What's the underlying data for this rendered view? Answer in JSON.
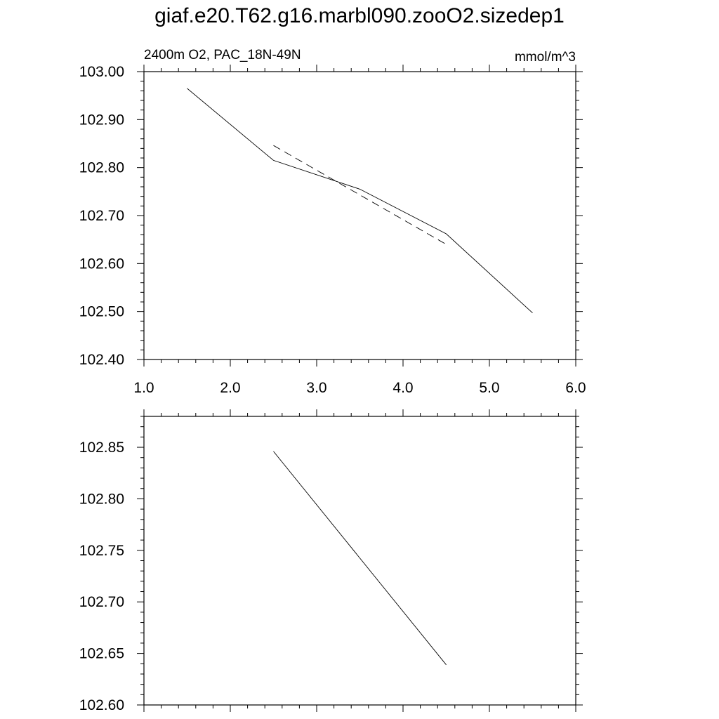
{
  "title": "giaf.e20.T62.g16.marbl090.zooO2.sizedep1",
  "chart_data": [
    {
      "type": "line",
      "left_label": "2400m O2, PAC_18N-49N",
      "right_label": "mmol/m^3",
      "xlim": [
        1.0,
        6.0
      ],
      "ylim": [
        102.4,
        103.0
      ],
      "x_ticks": [
        "1.0",
        "2.0",
        "3.0",
        "4.0",
        "5.0",
        "6.0"
      ],
      "y_ticks": [
        "102.40",
        "102.50",
        "102.60",
        "102.70",
        "102.80",
        "102.90",
        "103.00"
      ],
      "series": [
        {
          "style": "solid",
          "x": [
            1.5,
            2.5,
            3.5,
            4.5,
            5.5
          ],
          "y": [
            102.965,
            102.815,
            102.755,
            102.662,
            102.497
          ]
        },
        {
          "style": "dashed",
          "x": [
            2.5,
            4.5
          ],
          "y": [
            102.846,
            102.64
          ]
        }
      ]
    },
    {
      "type": "line",
      "xlim": [
        1.0,
        6.0
      ],
      "ylim": [
        102.6,
        102.88
      ],
      "y_ticks": [
        "102.60",
        "102.65",
        "102.70",
        "102.75",
        "102.80",
        "102.85"
      ],
      "series": [
        {
          "style": "solid",
          "x": [
            2.5,
            4.5
          ],
          "y": [
            102.846,
            102.639
          ]
        }
      ]
    }
  ]
}
